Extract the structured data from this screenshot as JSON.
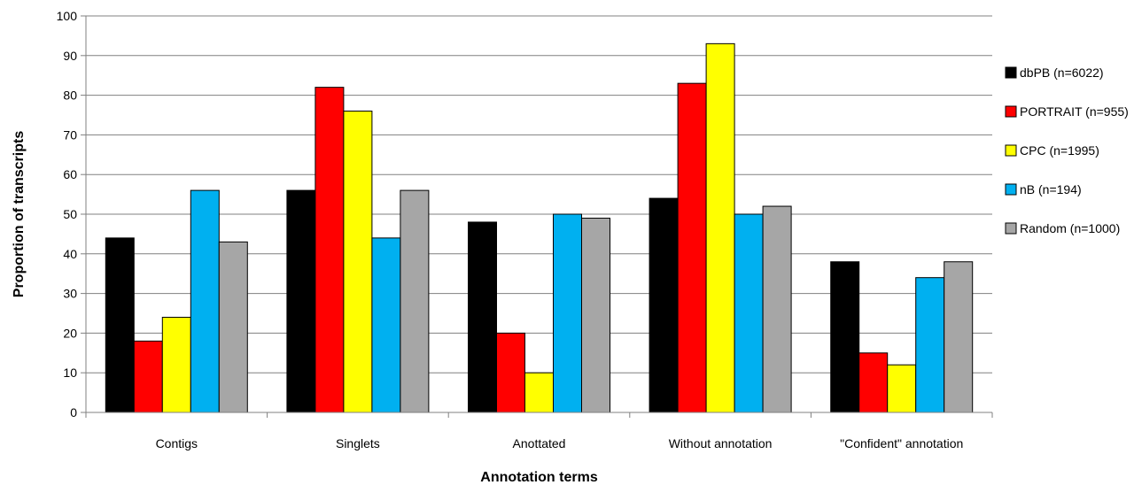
{
  "chart_data": {
    "type": "bar",
    "title": "",
    "xlabel": "Annotation terms",
    "ylabel": "Proportion of transcripts",
    "ylim": [
      0,
      100
    ],
    "yticks": [
      0,
      10,
      20,
      30,
      40,
      50,
      60,
      70,
      80,
      90,
      100
    ],
    "grid": true,
    "legend_position": "right",
    "categories": [
      "Contigs",
      "Singlets",
      "Anottated",
      "Without annotation",
      "\"Confident\" annotation"
    ],
    "series": [
      {
        "name": "dbPB (n=6022)",
        "color": "#000000",
        "values": [
          44,
          56,
          48,
          54,
          38
        ]
      },
      {
        "name": "PORTRAIT (n=955)",
        "color": "#ff0000",
        "values": [
          18,
          82,
          20,
          83,
          15
        ]
      },
      {
        "name": "CPC (n=1995)",
        "color": "#ffff00",
        "values": [
          24,
          76,
          10,
          93,
          12
        ]
      },
      {
        "name": "nB (n=194)",
        "color": "#00b0f0",
        "values": [
          56,
          44,
          50,
          50,
          34
        ]
      },
      {
        "name": "Random (n=1000)",
        "color": "#a6a6a6",
        "values": [
          43,
          56,
          49,
          52,
          38
        ]
      }
    ]
  }
}
